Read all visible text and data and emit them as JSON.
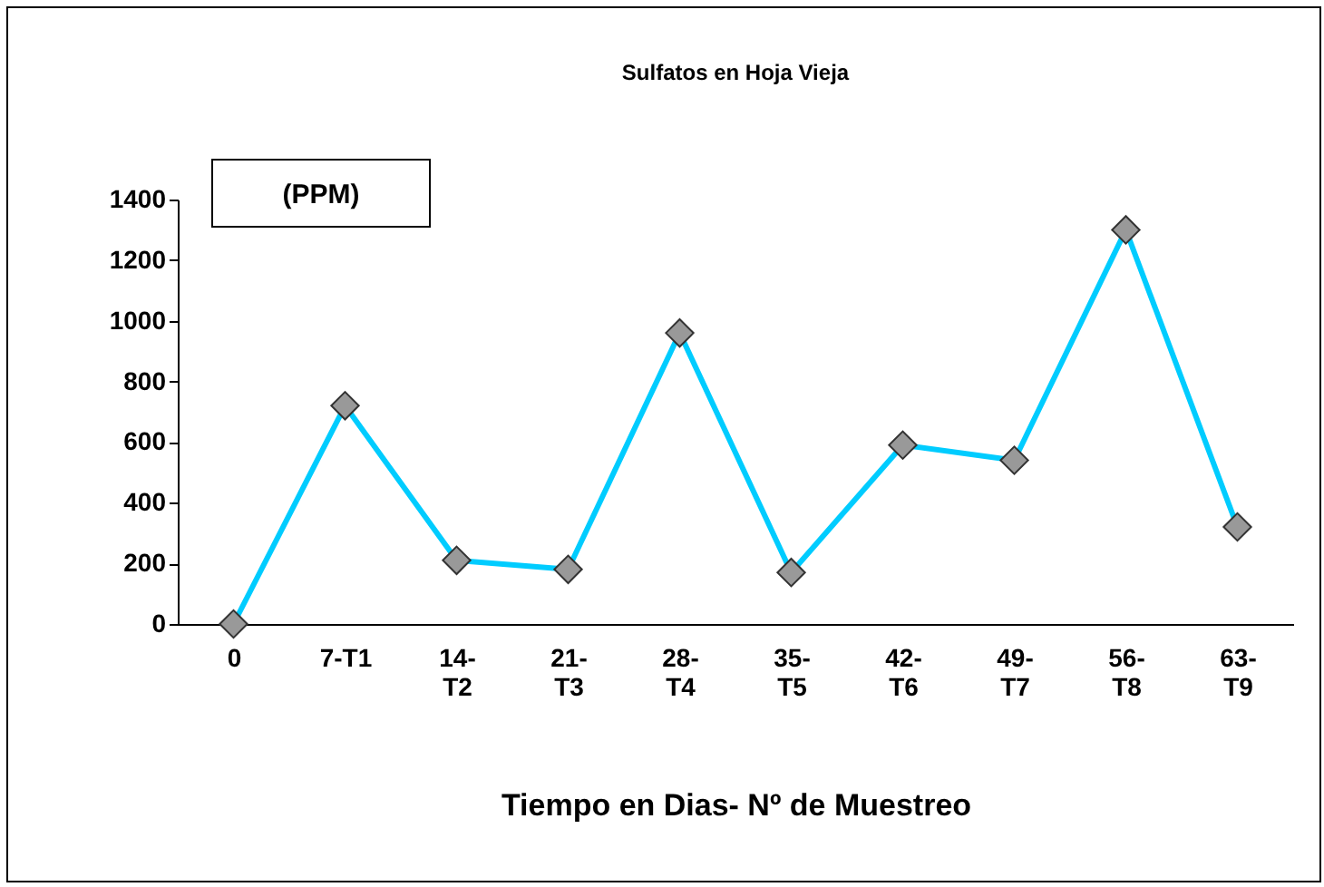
{
  "chart_data": {
    "type": "line",
    "title": "Sulfatos  en Hoja Vieja",
    "ylabel": "(PPM)",
    "xlabel": "Tiempo en Dias- Nº de Muestreo",
    "categories": [
      "0",
      "7-T1",
      "14-\nT2",
      "21-\nT3",
      "28-\nT4",
      "35-\nT5",
      "42-\nT6",
      "49-\nT7",
      "56-\nT8",
      "63-\nT9"
    ],
    "series": [
      {
        "color": "#00ccff",
        "values": [
          0,
          720,
          210,
          180,
          960,
          170,
          590,
          540,
          1300,
          320
        ]
      }
    ],
    "ylim": [
      0,
      1400
    ],
    "yticks": [
      0,
      200,
      400,
      600,
      800,
      1000,
      1200,
      1400
    ],
    "marker": "diamond",
    "line_style": "solid",
    "grid": false
  }
}
